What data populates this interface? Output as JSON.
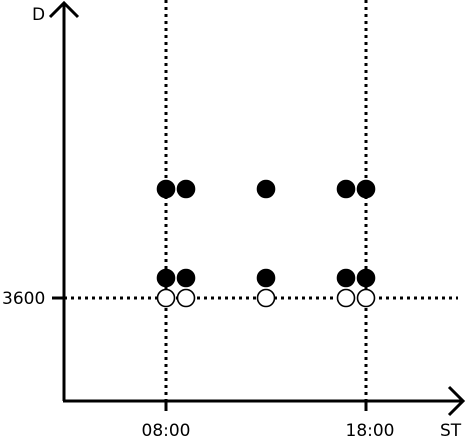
{
  "chart_data": {
    "type": "scatter",
    "title": "",
    "xlabel": "ST",
    "ylabel": "D",
    "x_ticks": [
      "08:00",
      "18:00"
    ],
    "y_ticks": [
      "3600"
    ],
    "reference_lines": {
      "vertical": [
        "08:00",
        "18:00"
      ],
      "horizontal": [
        3600
      ]
    },
    "series": [
      {
        "marker": "filled-circle",
        "points": [
          {
            "x": "08:00",
            "level": 3
          },
          {
            "x": "08:60",
            "level": 3
          },
          {
            "x": "13:00",
            "level": 3
          },
          {
            "x": "17:00",
            "level": 3
          },
          {
            "x": "18:00",
            "level": 3
          },
          {
            "x": "08:00",
            "level": 2
          },
          {
            "x": "08:60",
            "level": 2
          },
          {
            "x": "13:00",
            "level": 2
          },
          {
            "x": "17:00",
            "level": 2
          },
          {
            "x": "18:00",
            "level": 2
          }
        ]
      },
      {
        "marker": "open-circle",
        "points": [
          {
            "x": "08:00",
            "level": 1
          },
          {
            "x": "08:60",
            "level": 1
          },
          {
            "x": "13:00",
            "level": 1
          },
          {
            "x": "17:00",
            "level": 1
          },
          {
            "x": "18:00",
            "level": 1
          }
        ]
      }
    ],
    "grid": false,
    "legend": "none"
  }
}
